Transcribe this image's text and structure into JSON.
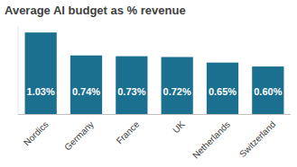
{
  "chart_data": {
    "type": "bar",
    "title": "Average AI budget as % revenue",
    "categories": [
      "Nordics",
      "Germany",
      "France",
      "UK",
      "Netherlands",
      "Switzerland"
    ],
    "values": [
      1.03,
      0.74,
      0.73,
      0.72,
      0.65,
      0.6
    ],
    "value_labels": [
      "1.03%",
      "0.74%",
      "0.73%",
      "0.72%",
      "0.65%",
      "0.60%"
    ],
    "color": "#1b6f8f",
    "ylim": [
      0,
      1.1
    ],
    "data_labels": true,
    "tick_labels": "x",
    "grid": false
  }
}
